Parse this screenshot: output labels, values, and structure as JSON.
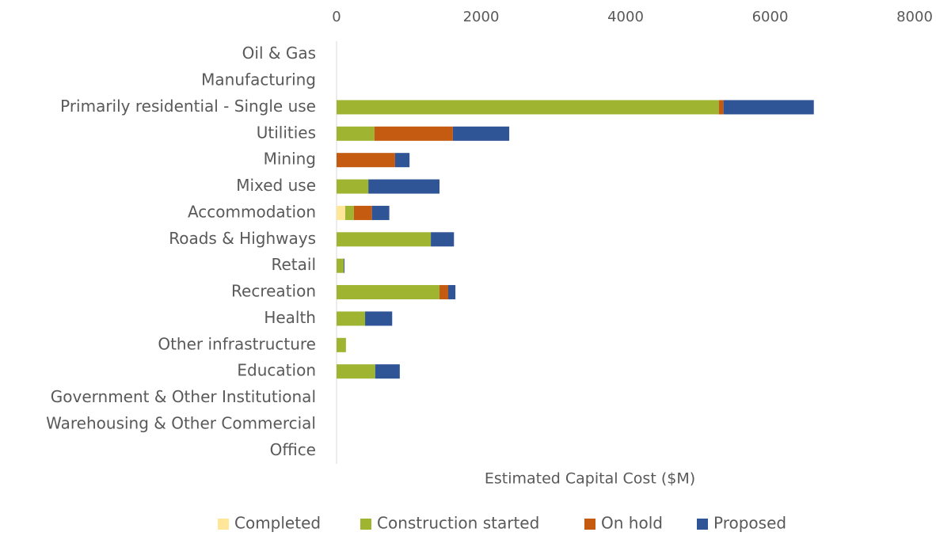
{
  "chart_data": {
    "type": "bar",
    "orientation": "horizontal",
    "stacked": true,
    "x_label": "Estimated Capital Cost ($M)",
    "categories": [
      "Oil & Gas",
      "Manufacturing",
      "Primarily residential - Single use",
      "Utilities",
      "Mining",
      "Mixed use",
      "Accommodation",
      "Roads & Highways",
      "Retail",
      "Recreation",
      "Health",
      "Other infrastructure",
      "Education",
      "Government & Other Institutional",
      "Warehousing & Other Commercial",
      "Office"
    ],
    "series": [
      {
        "name": "Completed",
        "color": "#ffe699",
        "values": [
          0,
          0,
          0,
          0,
          0,
          0,
          120,
          0,
          0,
          0,
          0,
          0,
          0,
          0,
          0,
          0
        ]
      },
      {
        "name": "Construction started",
        "color": "#9fb532",
        "values": [
          0,
          0,
          5290,
          525,
          0,
          440,
          120,
          1305,
          100,
          1425,
          395,
          130,
          535,
          0,
          0,
          0
        ]
      },
      {
        "name": "On hold",
        "color": "#c55a11",
        "values": [
          0,
          0,
          65,
          1085,
          810,
          0,
          250,
          0,
          0,
          120,
          0,
          0,
          0,
          0,
          0,
          0
        ]
      },
      {
        "name": "Proposed",
        "color": "#2f5597",
        "values": [
          0,
          0,
          1250,
          780,
          200,
          985,
          240,
          320,
          10,
          100,
          375,
          0,
          340,
          0,
          0,
          0
        ]
      }
    ],
    "xlim": [
      0,
      8000
    ],
    "xticks": [
      0,
      2000,
      4000,
      6000,
      8000
    ],
    "legend": "bottom"
  }
}
